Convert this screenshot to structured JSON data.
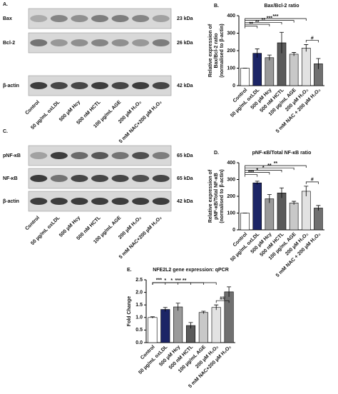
{
  "blots": [
    {
      "label": "A.",
      "rows": [
        {
          "name": "Bax",
          "size": "23 kDa"
        },
        {
          "name": "Bcl-2",
          "size": "26 kDa"
        },
        {
          "name": "β-actin",
          "size": "42 kDa"
        }
      ],
      "lanes": [
        "Control",
        "50 µg/mL oxLDL",
        "500 µM Hcy",
        "500 nM HCTL",
        "100 µg/mL AGE",
        "200 µM H₂O₂",
        "5 mM NAC+200 µM H₂O₂"
      ]
    },
    {
      "label": "C.",
      "rows": [
        {
          "name": "pNF-κB",
          "size": "65 kDa"
        },
        {
          "name": "NF-κB",
          "size": "65 kDa"
        },
        {
          "name": "β-actin",
          "size": "42 kDa"
        }
      ],
      "lanes": [
        "Control",
        "50 µg/mL oxLDL",
        "500 µM Hcy",
        "500 nM HCTL",
        "100 µg/mL AGE",
        "200 µM H₂O₂",
        "5 mM NAC+200 µM H₂O₂"
      ]
    }
  ],
  "chart_data": [
    {
      "type": "bar",
      "label": "B.",
      "title": "Bax/Bcl-2 ratio",
      "y_label": [
        "Relative expression of",
        "Bax/Bcl-2 ratio",
        "(normalised to β-actin)"
      ],
      "categories": [
        "Control",
        "50 µg/mL oxLDL",
        "500 µM Hcy",
        "500 nM HCTL",
        "100 µg/mL AGE",
        "200 µM H₂O₂",
        "5 mM NAC + 200 µM H₂O₂"
      ],
      "values": [
        100,
        185,
        160,
        245,
        180,
        215,
        125
      ],
      "errors": [
        0,
        25,
        15,
        60,
        10,
        20,
        30
      ],
      "colors": [
        "#ffffff",
        "#1c2566",
        "#9a9a9a",
        "#5a5a5a",
        "#c8c8c8",
        "#e2e2e2",
        "#707070"
      ],
      "annotations": [
        "**",
        "**",
        "**",
        "***",
        "***",
        "#"
      ],
      "ylim": [
        0,
        400
      ],
      "yticks": [
        0,
        100,
        200,
        300,
        400
      ]
    },
    {
      "type": "bar",
      "label": "D.",
      "title": "pNF-κB/Total NF-κB ratio",
      "y_label": [
        "Relative expression of",
        "pNF-κB/Total NF-κB",
        "(normalised to β-actin)"
      ],
      "categories": [
        "Control",
        "50 µg/mL oxLDL",
        "500 µM Hcy",
        "500 nM HCTL",
        "100 µg/mL AGE",
        "200 µM H₂O₂",
        "5 mM NAC + 200 µM H₂O₂"
      ],
      "values": [
        100,
        280,
        185,
        220,
        160,
        230,
        130
      ],
      "errors": [
        0,
        10,
        25,
        30,
        10,
        30,
        15
      ],
      "colors": [
        "#ffffff",
        "#1c2566",
        "#9a9a9a",
        "#5a5a5a",
        "#c8c8c8",
        "#e2e2e2",
        "#707070"
      ],
      "annotations": [
        "***",
        "*",
        "*",
        "**",
        "**",
        "#"
      ],
      "ylim": [
        0,
        400
      ],
      "yticks": [
        0,
        100,
        200,
        300,
        400
      ]
    },
    {
      "type": "bar",
      "label": "E.",
      "title": "NFE2L2 gene expression: qPCR",
      "y_label": [
        "Fold Change"
      ],
      "categories": [
        "Control",
        "50 µg/mL oxLDL",
        "500 µM Hcy",
        "500 nM HCTL",
        "100 µg/mL AGE",
        "200 µM H₂O₂",
        "5 mM NAC+200 µM H₂O₂"
      ],
      "values": [
        1.0,
        1.32,
        1.42,
        0.68,
        1.2,
        1.4,
        2.02
      ],
      "errors": [
        0.03,
        0.08,
        0.15,
        0.12,
        0.05,
        0.1,
        0.2
      ],
      "colors": [
        "#ffffff",
        "#1c2566",
        "#9a9a9a",
        "#5a5a5a",
        "#c8c8c8",
        "#e2e2e2",
        "#707070"
      ],
      "annotations": [
        "***",
        "*",
        "*",
        "***",
        "**",
        "##"
      ],
      "ylim": [
        0,
        2.5
      ],
      "yticks": [
        {
          "value": 0,
          "label": "0.0"
        },
        {
          "value": 0.5,
          "label": "0.5"
        },
        {
          "value": 1,
          "label": "1.0"
        },
        {
          "value": 1.5,
          "label": "1.5"
        },
        {
          "value": 2,
          "label": "2.0"
        },
        {
          "value": 2.5,
          "label": "2.5"
        }
      ]
    }
  ]
}
